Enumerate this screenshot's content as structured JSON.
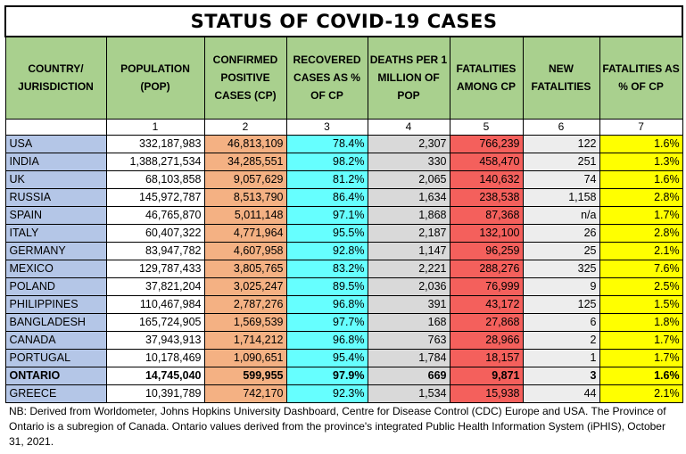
{
  "title": "STATUS OF COVID-19 CASES",
  "headers": [
    "COUNTRY/ JURISDICTION",
    "POPULATION (POP)",
    "CONFIRMED POSITIVE CASES (CP)",
    "RECOVERED CASES AS % OF CP",
    "DEATHS PER 1 MILLION OF POP",
    "FATALITIES AMONG CP",
    "NEW FATALITIES",
    "FATALITIES AS % OF CP"
  ],
  "column_numbers": [
    "",
    "1",
    "2",
    "3",
    "4",
    "5",
    "6",
    "7"
  ],
  "rows": [
    [
      "USA",
      "332,187,983",
      "46,813,109",
      "78.4%",
      "2,307",
      "766,239",
      "122",
      "1.6%"
    ],
    [
      "INDIA",
      "1,388,271,534",
      "34,285,551",
      "98.2%",
      "330",
      "458,470",
      "251",
      "1.3%"
    ],
    [
      "UK",
      "68,103,858",
      "9,057,629",
      "81.2%",
      "2,065",
      "140,632",
      "74",
      "1.6%"
    ],
    [
      "RUSSIA",
      "145,972,787",
      "8,513,790",
      "86.4%",
      "1,634",
      "238,538",
      "1,158",
      "2.8%"
    ],
    [
      "SPAIN",
      "46,765,870",
      "5,011,148",
      "97.1%",
      "1,868",
      "87,368",
      "n/a",
      "1.7%"
    ],
    [
      "ITALY",
      "60,407,322",
      "4,771,964",
      "95.5%",
      "2,187",
      "132,100",
      "26",
      "2.8%"
    ],
    [
      "GERMANY",
      "83,947,782",
      "4,607,958",
      "92.8%",
      "1,147",
      "96,259",
      "25",
      "2.1%"
    ],
    [
      "MEXICO",
      "129,787,433",
      "3,805,765",
      "83.2%",
      "2,221",
      "288,276",
      "325",
      "7.6%"
    ],
    [
      "POLAND",
      "37,821,204",
      "3,025,247",
      "89.5%",
      "2,036",
      "76,999",
      "9",
      "2.5%"
    ],
    [
      "PHILIPPINES",
      "110,467,984",
      "2,787,276",
      "96.8%",
      "391",
      "43,172",
      "125",
      "1.5%"
    ],
    [
      "BANGLADESH",
      "165,724,905",
      "1,569,539",
      "97.7%",
      "168",
      "27,868",
      "6",
      "1.8%"
    ],
    [
      "CANADA",
      "37,943,913",
      "1,714,212",
      "96.8%",
      "763",
      "28,966",
      "2",
      "1.7%"
    ],
    [
      "PORTUGAL",
      "10,178,469",
      "1,090,651",
      "95.4%",
      "1,784",
      "18,157",
      "1",
      "1.7%"
    ],
    [
      "ONTARIO",
      "14,745,040",
      "599,955",
      "97.9%",
      "669",
      "9,871",
      "3",
      "1.6%"
    ],
    [
      "GREECE",
      "10,391,789",
      "742,170",
      "92.3%",
      "1,534",
      "15,938",
      "44",
      "2.1%"
    ]
  ],
  "bold_rows": [
    13
  ],
  "note": "NB: Derived from Worldometer, Johns Hopkins University Dashboard, Centre for Disease Control (CDC) Europe and USA. The Province of Ontario is a subregion of Canada. Ontario values derived from the province's integrated Public Health Information System (iPHIS), October 31, 2021.",
  "colors": {
    "header_green": "#a9d08e",
    "country_blue": "#b4c6e7",
    "cases_orange": "#f4b183",
    "recovered_cyan": "#66ffff",
    "deaths_gray": "#d9d9d9",
    "fatalities_red": "#f4605c",
    "new_gray": "#ededed",
    "pct_yellow": "#ffff00"
  }
}
